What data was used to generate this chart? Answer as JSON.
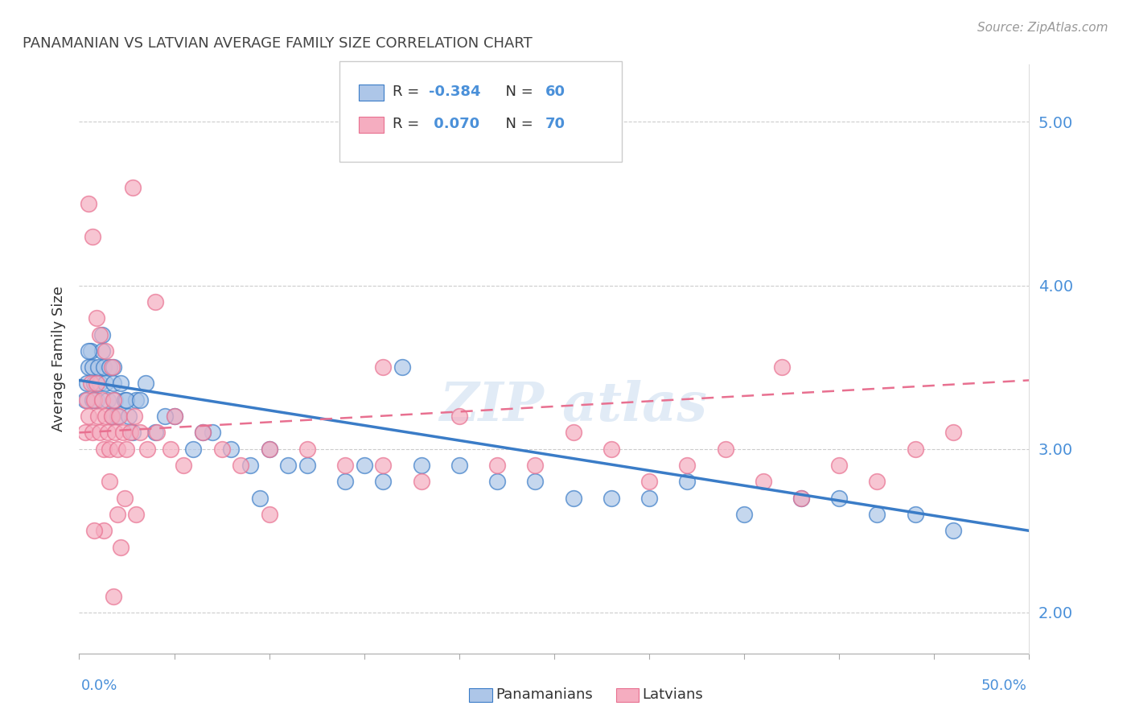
{
  "title": "PANAMANIAN VS LATVIAN AVERAGE FAMILY SIZE CORRELATION CHART",
  "source_text": "Source: ZipAtlas.com",
  "ylabel": "Average Family Size",
  "yticks": [
    2.0,
    3.0,
    4.0,
    5.0
  ],
  "xlim": [
    0.0,
    50.0
  ],
  "ylim": [
    1.75,
    5.35
  ],
  "panamanian_color": "#adc6e8",
  "latvian_color": "#f5adc0",
  "panamanian_line_color": "#3a7cc7",
  "latvian_line_color": "#e87090",
  "R_pan": -0.384,
  "N_pan": 60,
  "R_lat": 0.07,
  "N_lat": 70,
  "legend_label_pan": "Panamanians",
  "legend_label_lat": "Latvians",
  "pan_trend_x0": 0.0,
  "pan_trend_y0": 3.42,
  "pan_trend_x1": 50.0,
  "pan_trend_y1": 2.5,
  "lat_trend_x0": 0.0,
  "lat_trend_y0": 3.1,
  "lat_trend_x1": 50.0,
  "lat_trend_y1": 3.42,
  "panamanian_x": [
    0.3,
    0.4,
    0.5,
    0.6,
    0.7,
    0.8,
    0.9,
    1.0,
    1.1,
    1.2,
    1.3,
    1.4,
    1.5,
    1.6,
    1.7,
    1.8,
    1.9,
    2.0,
    2.2,
    2.4,
    2.6,
    2.8,
    3.0,
    3.5,
    4.0,
    5.0,
    6.0,
    7.0,
    8.0,
    9.0,
    10.0,
    11.0,
    12.0,
    14.0,
    15.0,
    16.0,
    18.0,
    20.0,
    22.0,
    24.0,
    26.0,
    28.0,
    30.0,
    32.0,
    35.0,
    38.0,
    40.0,
    42.0,
    44.0,
    46.0,
    0.5,
    0.7,
    1.2,
    1.8,
    2.5,
    3.2,
    4.5,
    6.5,
    9.5,
    17.0
  ],
  "panamanian_y": [
    3.3,
    3.4,
    3.5,
    3.6,
    3.5,
    3.4,
    3.3,
    3.5,
    3.4,
    3.6,
    3.5,
    3.4,
    3.3,
    3.5,
    3.2,
    3.4,
    3.3,
    3.2,
    3.4,
    3.3,
    3.2,
    3.1,
    3.3,
    3.4,
    3.1,
    3.2,
    3.0,
    3.1,
    3.0,
    2.9,
    3.0,
    2.9,
    2.9,
    2.8,
    2.9,
    2.8,
    2.9,
    2.9,
    2.8,
    2.8,
    2.7,
    2.7,
    2.7,
    2.8,
    2.6,
    2.7,
    2.7,
    2.6,
    2.6,
    2.5,
    3.6,
    3.3,
    3.7,
    3.5,
    3.3,
    3.3,
    3.2,
    3.1,
    2.7,
    3.5
  ],
  "latvian_x": [
    0.3,
    0.4,
    0.5,
    0.6,
    0.7,
    0.8,
    0.9,
    1.0,
    1.1,
    1.2,
    1.3,
    1.4,
    1.5,
    1.6,
    1.7,
    1.8,
    1.9,
    2.0,
    2.1,
    2.3,
    2.5,
    2.7,
    2.9,
    3.2,
    3.6,
    4.1,
    4.8,
    5.5,
    6.5,
    7.5,
    8.5,
    10.0,
    12.0,
    14.0,
    16.0,
    18.0,
    20.0,
    22.0,
    24.0,
    26.0,
    28.0,
    30.0,
    32.0,
    34.0,
    36.0,
    38.0,
    40.0,
    42.0,
    44.0,
    46.0,
    0.5,
    0.7,
    0.9,
    1.1,
    1.4,
    1.7,
    2.0,
    2.4,
    5.0,
    10.0,
    1.3,
    1.6,
    2.2,
    3.0,
    37.0,
    4.0,
    16.0,
    0.8,
    1.8,
    2.8
  ],
  "latvian_y": [
    3.1,
    3.3,
    3.2,
    3.4,
    3.1,
    3.3,
    3.4,
    3.2,
    3.1,
    3.3,
    3.0,
    3.2,
    3.1,
    3.0,
    3.2,
    3.3,
    3.1,
    3.0,
    3.2,
    3.1,
    3.0,
    3.1,
    3.2,
    3.1,
    3.0,
    3.1,
    3.0,
    2.9,
    3.1,
    3.0,
    2.9,
    3.0,
    3.0,
    2.9,
    2.9,
    2.8,
    3.2,
    2.9,
    2.9,
    3.1,
    3.0,
    2.8,
    2.9,
    3.0,
    2.8,
    2.7,
    2.9,
    2.8,
    3.0,
    3.1,
    4.5,
    4.3,
    3.8,
    3.7,
    3.6,
    3.5,
    2.6,
    2.7,
    3.2,
    2.6,
    2.5,
    2.8,
    2.4,
    2.6,
    3.5,
    3.9,
    3.5,
    2.5,
    2.1,
    4.6
  ]
}
